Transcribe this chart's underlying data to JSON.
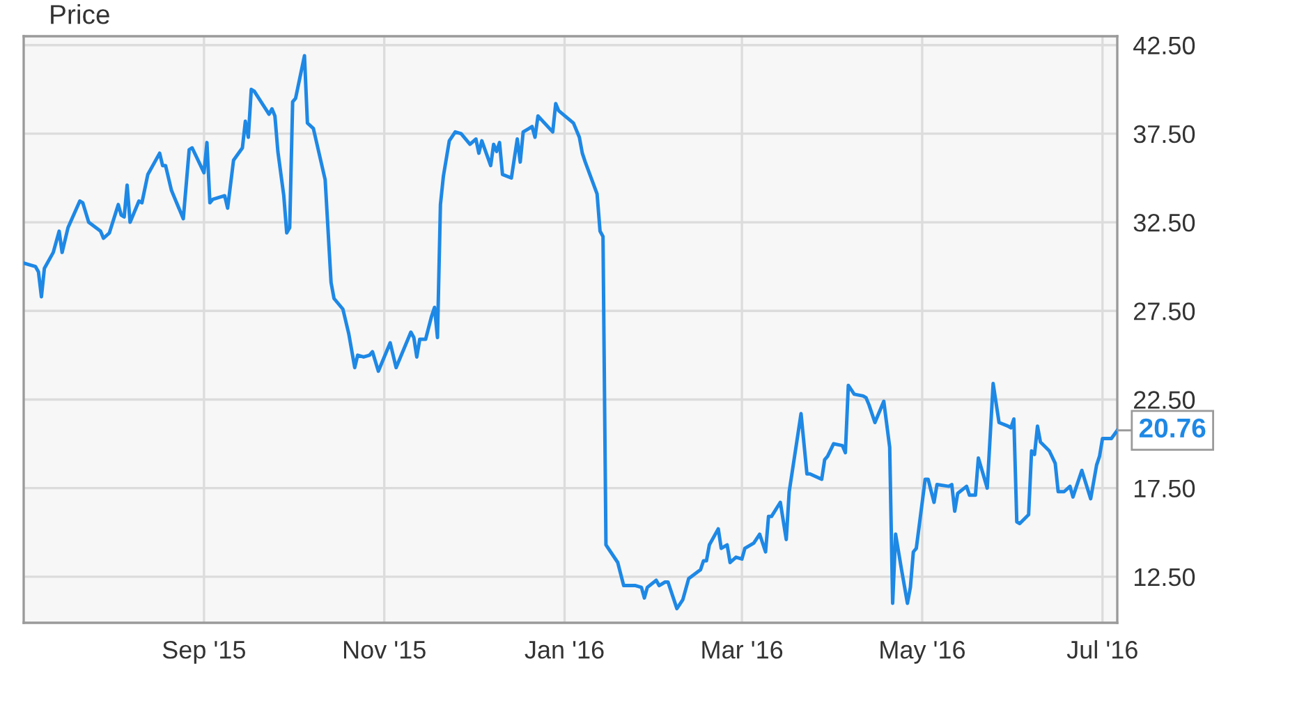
{
  "chart_data": {
    "type": "line",
    "title": "Price",
    "x": [
      "2015-07-02",
      "2015-07-06",
      "2015-07-07",
      "2015-07-08",
      "2015-07-09",
      "2015-07-12",
      "2015-07-14",
      "2015-07-15",
      "2015-07-17",
      "2015-07-21",
      "2015-07-22",
      "2015-07-24",
      "2015-07-28",
      "2015-07-29",
      "2015-07-31",
      "2015-08-03",
      "2015-08-04",
      "2015-08-05",
      "2015-08-06",
      "2015-08-07",
      "2015-08-10",
      "2015-08-11",
      "2015-08-13",
      "2015-08-17",
      "2015-08-18",
      "2015-08-19",
      "2015-08-21",
      "2015-08-25",
      "2015-08-27",
      "2015-08-28",
      "2015-09-01",
      "2015-09-02",
      "2015-09-03",
      "2015-09-04",
      "2015-09-08",
      "2015-09-09",
      "2015-09-11",
      "2015-09-14",
      "2015-09-15",
      "2015-09-16",
      "2015-09-17",
      "2015-09-18",
      "2015-09-23",
      "2015-09-24",
      "2015-09-25",
      "2015-09-26",
      "2015-09-28",
      "2015-09-29",
      "2015-09-30",
      "2015-10-01",
      "2015-10-02",
      "2015-10-05",
      "2015-10-06",
      "2015-10-08",
      "2015-10-12",
      "2015-10-14",
      "2015-10-15",
      "2015-10-18",
      "2015-10-20",
      "2015-10-22",
      "2015-10-23",
      "2015-10-25",
      "2015-10-27",
      "2015-10-28",
      "2015-10-30",
      "2015-11-03",
      "2015-11-05",
      "2015-11-10",
      "2015-11-11",
      "2015-11-12",
      "2015-11-13",
      "2015-11-15",
      "2015-11-17",
      "2015-11-18",
      "2015-11-19",
      "2015-11-20",
      "2015-11-21",
      "2015-11-23",
      "2015-11-25",
      "2015-11-27",
      "2015-11-30",
      "2015-12-02",
      "2015-12-03",
      "2015-12-04",
      "2015-12-07",
      "2015-12-08",
      "2015-12-09",
      "2015-12-10",
      "2015-12-11",
      "2015-12-14",
      "2015-12-16",
      "2015-12-17",
      "2015-12-18",
      "2015-12-20",
      "2015-12-21",
      "2015-12-22",
      "2015-12-23",
      "2015-12-28",
      "2015-12-29",
      "2015-12-30",
      "2016-01-04",
      "2016-01-06",
      "2016-01-07",
      "2016-01-08",
      "2016-01-12",
      "2016-01-13",
      "2016-01-14",
      "2016-01-15",
      "2016-01-19",
      "2016-01-21",
      "2016-01-25",
      "2016-01-27",
      "2016-01-28",
      "2016-01-29",
      "2016-02-01",
      "2016-02-02",
      "2016-02-04",
      "2016-02-05",
      "2016-02-08",
      "2016-02-10",
      "2016-02-12",
      "2016-02-16",
      "2016-02-17",
      "2016-02-18",
      "2016-02-19",
      "2016-02-22",
      "2016-02-23",
      "2016-02-25",
      "2016-02-26",
      "2016-02-28",
      "2016-03-01",
      "2016-03-02",
      "2016-03-05",
      "2016-03-07",
      "2016-03-09",
      "2016-03-10",
      "2016-03-11",
      "2016-03-14",
      "2016-03-16",
      "2016-03-17",
      "2016-03-21",
      "2016-03-23",
      "2016-03-24",
      "2016-03-28",
      "2016-03-29",
      "2016-03-30",
      "2016-04-01",
      "2016-04-04",
      "2016-04-05",
      "2016-04-06",
      "2016-04-08",
      "2016-04-11",
      "2016-04-12",
      "2016-04-13",
      "2016-04-15",
      "2016-04-18",
      "2016-04-20",
      "2016-04-21",
      "2016-04-22",
      "2016-04-24",
      "2016-04-26",
      "2016-04-27",
      "2016-04-28",
      "2016-04-29",
      "2016-05-02",
      "2016-05-03",
      "2016-05-05",
      "2016-05-06",
      "2016-05-10",
      "2016-05-11",
      "2016-05-12",
      "2016-05-13",
      "2016-05-16",
      "2016-05-17",
      "2016-05-19",
      "2016-05-20",
      "2016-05-23",
      "2016-05-25",
      "2016-05-27",
      "2016-05-30",
      "2016-05-31",
      "2016-06-01",
      "2016-06-02",
      "2016-06-03",
      "2016-06-06",
      "2016-06-07",
      "2016-06-08",
      "2016-06-09",
      "2016-06-10",
      "2016-06-13",
      "2016-06-15",
      "2016-06-16",
      "2016-06-18",
      "2016-06-20",
      "2016-06-21",
      "2016-06-24",
      "2016-06-27",
      "2016-06-29",
      "2016-06-30",
      "2016-07-01",
      "2016-07-04",
      "2016-07-06"
    ],
    "series": [
      {
        "color": "#1e88e5",
        "values": [
          30.2,
          30.0,
          29.7,
          28.3,
          29.9,
          30.8,
          32.0,
          30.8,
          32.2,
          33.7,
          33.6,
          32.5,
          32.0,
          31.6,
          31.9,
          33.5,
          32.9,
          32.8,
          34.6,
          32.5,
          33.7,
          33.6,
          35.2,
          36.4,
          35.7,
          35.7,
          34.3,
          32.7,
          36.6,
          36.7,
          35.3,
          37.0,
          33.6,
          33.8,
          34.0,
          33.3,
          36.0,
          36.7,
          38.2,
          37.3,
          40.0,
          39.9,
          38.6,
          38.9,
          38.5,
          36.5,
          34.0,
          31.9,
          32.2,
          39.3,
          39.5,
          41.9,
          38.1,
          37.8,
          34.9,
          29.1,
          28.2,
          27.6,
          26.2,
          24.3,
          25.0,
          24.9,
          25.0,
          25.2,
          24.1,
          25.7,
          24.3,
          26.3,
          26.0,
          24.9,
          25.9,
          25.9,
          27.2,
          27.7,
          26.0,
          33.5,
          35.1,
          37.1,
          37.6,
          37.5,
          36.9,
          37.2,
          36.4,
          37.1,
          35.7,
          36.9,
          36.5,
          37.0,
          35.2,
          35.0,
          37.2,
          35.9,
          37.6,
          37.8,
          37.9,
          37.3,
          38.5,
          37.6,
          39.2,
          38.8,
          38.1,
          37.3,
          36.4,
          35.9,
          34.1,
          32.0,
          31.7,
          14.3,
          13.3,
          12.0,
          12.0,
          11.9,
          11.3,
          11.9,
          12.3,
          12.0,
          12.2,
          12.2,
          10.7,
          11.2,
          12.4,
          12.9,
          13.4,
          13.4,
          14.3,
          15.2,
          14.1,
          14.3,
          13.3,
          13.6,
          13.5,
          14.1,
          14.4,
          14.9,
          13.9,
          15.9,
          15.9,
          16.7,
          14.6,
          17.3,
          21.7,
          18.3,
          18.3,
          18.0,
          19.1,
          19.3,
          20.0,
          19.9,
          19.5,
          23.3,
          22.8,
          22.7,
          22.6,
          22.2,
          21.2,
          22.4,
          19.8,
          11.0,
          14.9,
          12.9,
          11.0,
          11.9,
          13.9,
          14.1,
          18.0,
          18.0,
          16.7,
          17.7,
          17.6,
          17.7,
          16.2,
          17.2,
          17.6,
          17.1,
          17.1,
          19.2,
          17.5,
          23.4,
          21.2,
          21.0,
          20.9,
          21.4,
          15.6,
          15.5,
          16.0,
          19.6,
          19.4,
          21.0,
          20.1,
          19.6,
          18.9,
          17.3,
          17.3,
          17.6,
          17.0,
          18.5,
          16.9,
          18.8,
          19.3,
          20.3,
          20.3,
          20.76
        ]
      }
    ],
    "xlim": [
      "2015-07-02",
      "2016-07-06"
    ],
    "ylim": [
      9.9,
      43.0
    ],
    "xticks": [
      {
        "value": "2015-09-01",
        "label": "Sep '15"
      },
      {
        "value": "2015-11-01",
        "label": "Nov '15"
      },
      {
        "value": "2016-01-01",
        "label": "Jan '16"
      },
      {
        "value": "2016-03-01",
        "label": "Mar '16"
      },
      {
        "value": "2016-05-01",
        "label": "May '16"
      },
      {
        "value": "2016-07-01",
        "label": "Jul '16"
      }
    ],
    "yticks": [
      {
        "value": 12.5,
        "label": "12.50"
      },
      {
        "value": 17.5,
        "label": "17.50"
      },
      {
        "value": 22.5,
        "label": "22.50"
      },
      {
        "value": 27.5,
        "label": "27.50"
      },
      {
        "value": 32.5,
        "label": "32.50"
      },
      {
        "value": 37.5,
        "label": "37.50"
      },
      {
        "value": 42.5,
        "label": "42.50"
      }
    ],
    "grid": true,
    "annotations": [
      {
        "text": "20.76",
        "x": "2016-07-06",
        "y": 20.76
      }
    ]
  }
}
